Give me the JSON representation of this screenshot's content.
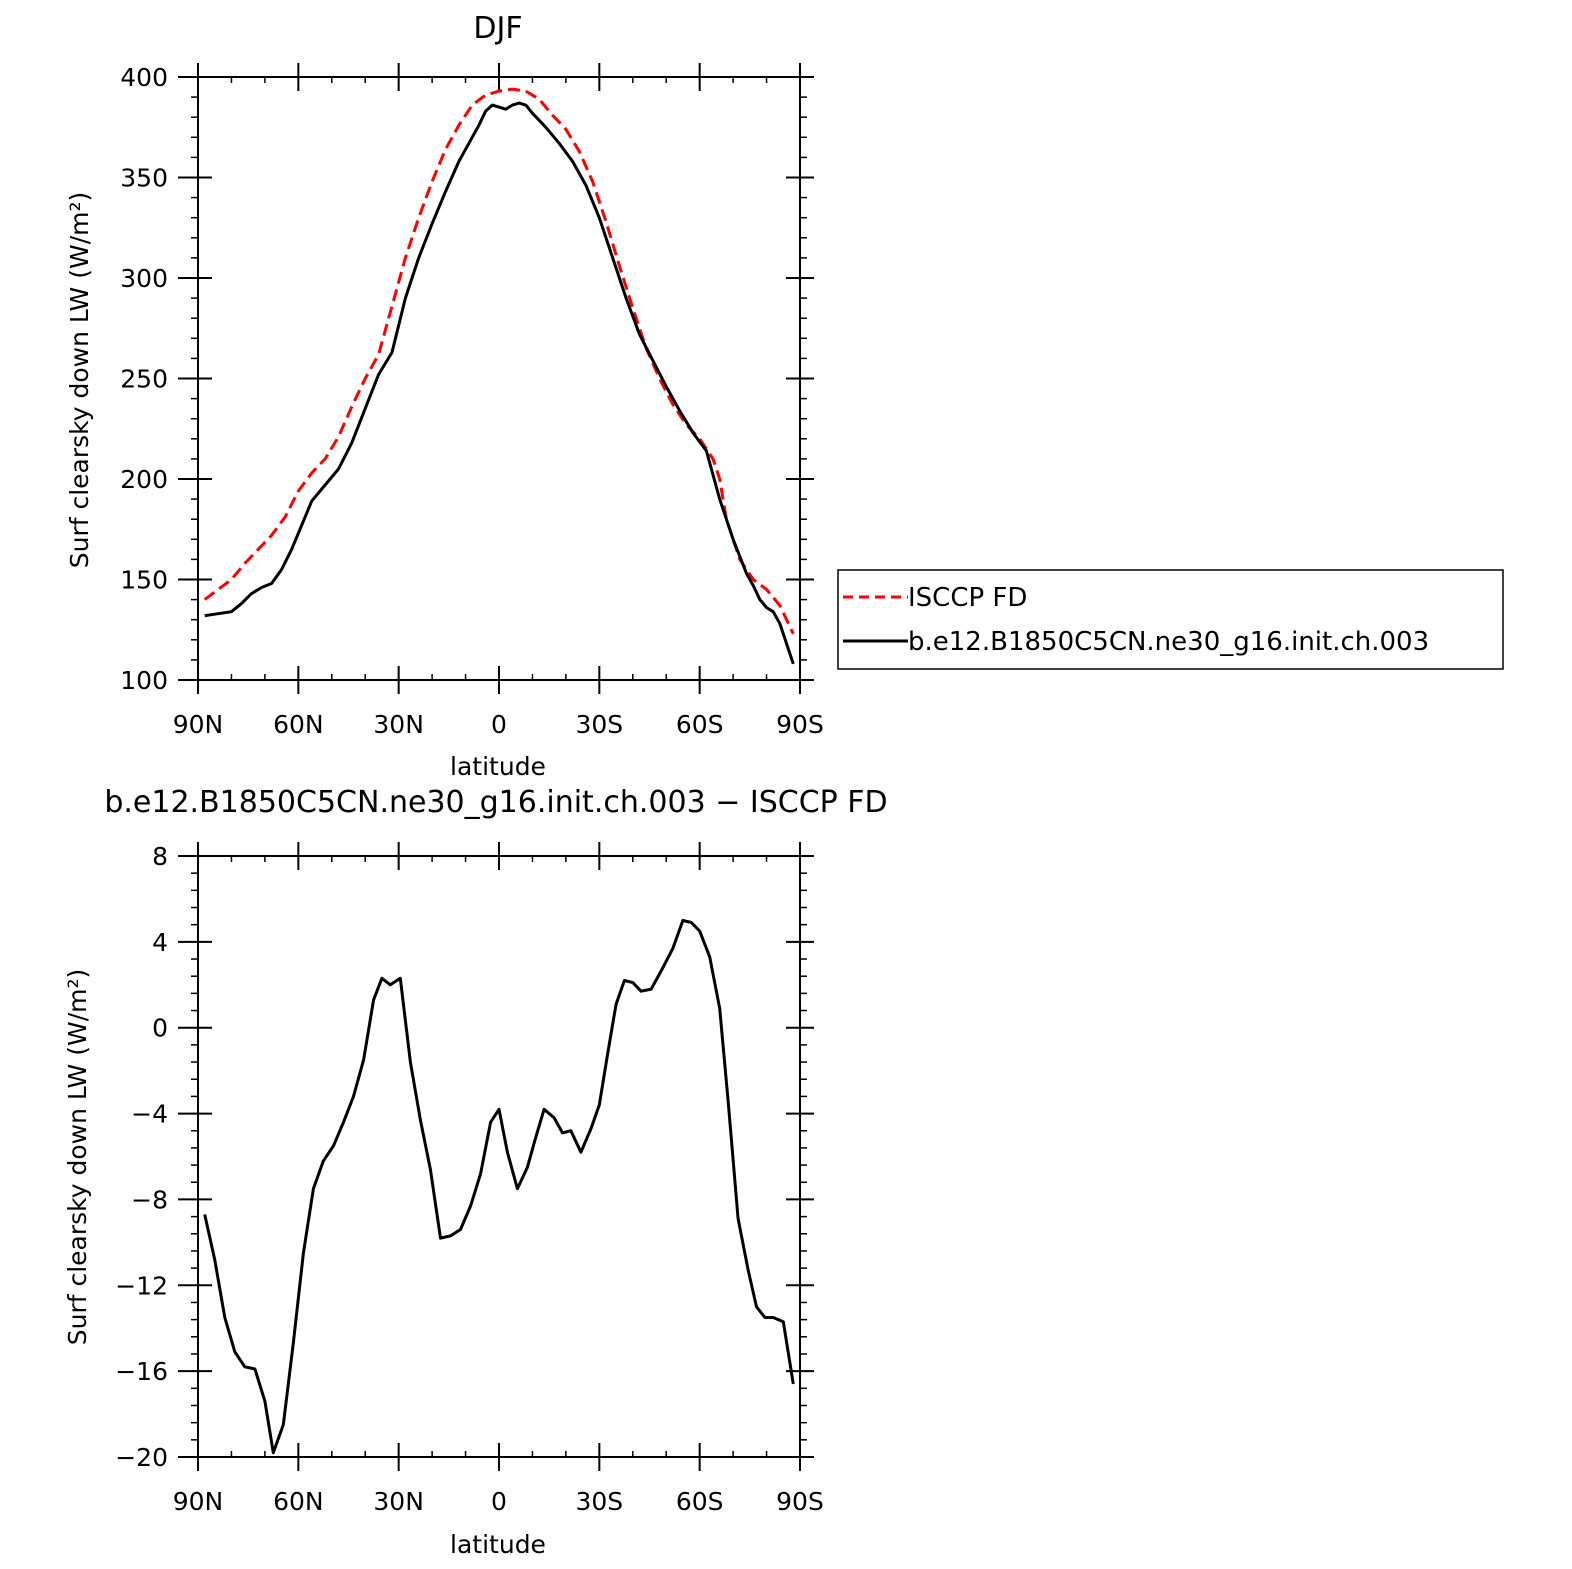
{
  "chart_data": [
    {
      "type": "line",
      "title": "DJF",
      "xlabel": "latitude",
      "ylabel": "Surf clearsky down LW (W/m²)",
      "xlim": [
        90,
        -90
      ],
      "ylim": [
        100,
        400
      ],
      "xticks": [
        90,
        60,
        30,
        0,
        -30,
        -60,
        -90
      ],
      "xtick_labels": [
        "90N",
        "60N",
        "30N",
        "0",
        "30S",
        "60S",
        "90S"
      ],
      "yticks": [
        100,
        150,
        200,
        250,
        300,
        350,
        400
      ],
      "ytick_labels": [
        "100",
        "150",
        "200",
        "250",
        "300",
        "350",
        "400"
      ],
      "legend": "right",
      "series": [
        {
          "name": "ISCCP FD",
          "color": "#ff0000",
          "dash": "dashed",
          "x": [
            88,
            84,
            80,
            76,
            72,
            68,
            64,
            60,
            56,
            52,
            48,
            44,
            40,
            36,
            32,
            28,
            24,
            20,
            16,
            12,
            8,
            4,
            0,
            -4,
            -8,
            -12,
            -16,
            -20,
            -24,
            -28,
            -32,
            -36,
            -40,
            -44,
            -48,
            -52,
            -56,
            -60,
            -64,
            -66,
            -68,
            -72,
            -76,
            -80,
            -84,
            -88
          ],
          "y": [
            140,
            145,
            150,
            158,
            165,
            172,
            181,
            194,
            203,
            210,
            221,
            236,
            250,
            262,
            286,
            310,
            330,
            348,
            364,
            376,
            386,
            391,
            393,
            394,
            393,
            389,
            381,
            374,
            363,
            348,
            328,
            306,
            285,
            265,
            250,
            237,
            227,
            220,
            210,
            200,
            180,
            160,
            150,
            145,
            137,
            123
          ]
        },
        {
          "name": "b.e12.B1850C5CN.ne30_g16.init.ch.003",
          "color": "#000000",
          "dash": "solid",
          "x": [
            88,
            84,
            80,
            77,
            74,
            71,
            68,
            65,
            62,
            59,
            56,
            52,
            48,
            44,
            40,
            36,
            32,
            28,
            24,
            20,
            16,
            12,
            8,
            6,
            4,
            2,
            0,
            -2,
            -4,
            -6,
            -8,
            -10,
            -14,
            -18,
            -22,
            -26,
            -30,
            -34,
            -38,
            -42,
            -46,
            -50,
            -54,
            -58,
            -62,
            -66,
            -70,
            -74,
            -76,
            -78,
            -80,
            -82,
            -84,
            -86,
            -88
          ],
          "y": [
            132,
            133,
            134,
            138,
            143,
            146,
            148,
            155,
            165,
            177,
            189,
            197,
            205,
            218,
            235,
            252,
            263,
            290,
            310,
            327,
            343,
            358,
            370,
            376,
            383,
            386,
            385,
            384,
            386,
            387,
            386,
            382,
            375,
            367,
            358,
            346,
            330,
            310,
            290,
            272,
            259,
            246,
            234,
            223,
            214,
            190,
            170,
            153,
            147,
            140,
            136,
            134,
            128,
            118,
            108
          ]
        }
      ]
    },
    {
      "type": "line",
      "title": "b.e12.B1850C5CN.ne30_g16.init.ch.003 − ISCCP FD",
      "xlabel": "latitude",
      "ylabel": "Surf clearsky down LW (W/m²)",
      "xlim": [
        90,
        -90
      ],
      "ylim": [
        -20,
        8
      ],
      "xticks": [
        90,
        60,
        30,
        0,
        -30,
        -60,
        -90
      ],
      "xtick_labels": [
        "90N",
        "60N",
        "30N",
        "0",
        "30S",
        "60S",
        "90S"
      ],
      "yticks": [
        -20,
        -16,
        -12,
        -8,
        -4,
        0,
        4,
        8
      ],
      "ytick_labels": [
        "−20",
        "−16",
        "−12",
        "−8",
        "−4",
        "0",
        "4",
        "8"
      ],
      "series": [
        {
          "color": "#000000",
          "dash": "solid",
          "x": [
            88,
            85,
            82,
            79,
            76,
            73,
            70,
            67.5,
            64.5,
            61.5,
            58.5,
            55.5,
            52.5,
            49.5,
            46.5,
            43.5,
            40.5,
            37.5,
            35,
            32.5,
            29.5,
            26.5,
            23.5,
            20.5,
            17.5,
            14.5,
            11.5,
            8.5,
            5.5,
            2.5,
            0,
            -2.5,
            -5.5,
            -8.5,
            -11,
            -13.5,
            -16.5,
            -19,
            -21.5,
            -24.5,
            -27.5,
            -30,
            -32.5,
            -35,
            -37.5,
            -40,
            -42.5,
            -45.5,
            -49,
            -52,
            -55,
            -57.5,
            -60,
            -63,
            -66,
            -68.5,
            -71.5,
            -74.5,
            -77,
            -79.5,
            -82,
            -85,
            -88
          ],
          "y": [
            -8.7,
            -10.8,
            -13.5,
            -15.1,
            -15.8,
            -15.9,
            -17.4,
            -19.8,
            -18.5,
            -14.7,
            -10.5,
            -7.5,
            -6.2,
            -5.5,
            -4.4,
            -3.2,
            -1.5,
            1.3,
            2.3,
            2.0,
            2.3,
            -1.6,
            -4.3,
            -6.6,
            -9.8,
            -9.7,
            -9.4,
            -8.3,
            -6.8,
            -4.4,
            -3.8,
            -5.8,
            -7.5,
            -6.5,
            -5.1,
            -3.8,
            -4.2,
            -4.9,
            -4.8,
            -5.8,
            -4.7,
            -3.6,
            -1.2,
            1.1,
            2.2,
            2.1,
            1.7,
            1.8,
            2.8,
            3.7,
            5.0,
            4.9,
            4.5,
            3.3,
            0.9,
            -3.4,
            -8.9,
            -11.3,
            -13.0,
            -13.5,
            -13.5,
            -13.7,
            -16.6
          ]
        }
      ]
    }
  ]
}
